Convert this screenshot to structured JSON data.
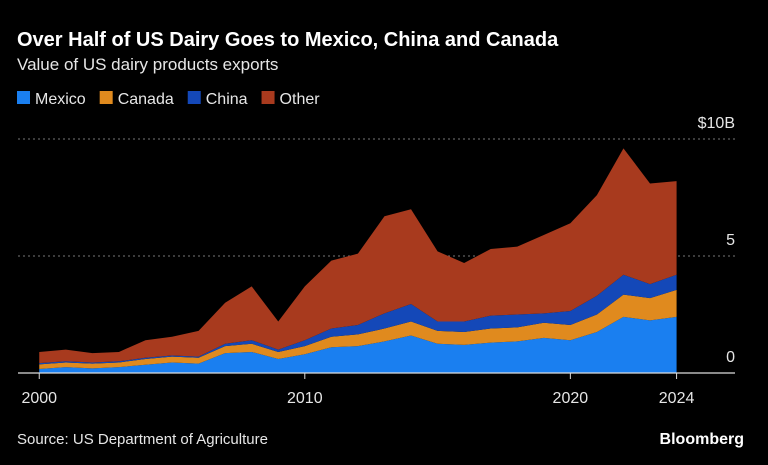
{
  "chart_data": {
    "type": "stacked_area",
    "title": "Over Half of US Dairy Goes to Mexico, China and Canada",
    "subtitle": "Value of US dairy products exports",
    "source": "Source: US Department of Agriculture",
    "brand": "Bloomberg",
    "x": [
      2000,
      2001,
      2002,
      2003,
      2004,
      2005,
      2006,
      2007,
      2008,
      2009,
      2010,
      2011,
      2012,
      2013,
      2014,
      2015,
      2016,
      2017,
      2018,
      2019,
      2020,
      2021,
      2022,
      2023,
      2024
    ],
    "xlim": [
      1999.2,
      2026.2
    ],
    "xticks": [
      2000,
      2010,
      2020,
      2024
    ],
    "ylim": [
      0,
      10
    ],
    "yticks": [
      0,
      5,
      {
        "value": 10,
        "label": "$10B"
      }
    ],
    "grid": true,
    "series": [
      {
        "name": "Mexico",
        "color": "#1a7ff0",
        "values": [
          0.17,
          0.25,
          0.2,
          0.25,
          0.35,
          0.45,
          0.4,
          0.85,
          0.9,
          0.6,
          0.8,
          1.1,
          1.15,
          1.35,
          1.6,
          1.25,
          1.2,
          1.3,
          1.35,
          1.5,
          1.4,
          1.75,
          2.4,
          2.25,
          2.4
        ]
      },
      {
        "name": "Canada",
        "color": "#e08a1e",
        "values": [
          0.2,
          0.2,
          0.2,
          0.2,
          0.25,
          0.25,
          0.25,
          0.3,
          0.35,
          0.3,
          0.35,
          0.45,
          0.5,
          0.55,
          0.6,
          0.55,
          0.55,
          0.6,
          0.6,
          0.65,
          0.65,
          0.75,
          0.95,
          0.95,
          1.15
        ]
      },
      {
        "name": "China",
        "color": "#1448b8",
        "values": [
          0.05,
          0.05,
          0.05,
          0.05,
          0.05,
          0.05,
          0.05,
          0.1,
          0.15,
          0.1,
          0.25,
          0.35,
          0.4,
          0.65,
          0.75,
          0.4,
          0.45,
          0.55,
          0.55,
          0.4,
          0.6,
          0.8,
          0.85,
          0.6,
          0.65
        ]
      },
      {
        "name": "Other",
        "color": "#a83a1e",
        "values": [
          0.48,
          0.5,
          0.4,
          0.4,
          0.75,
          0.8,
          1.1,
          1.75,
          2.3,
          1.2,
          2.3,
          2.9,
          3.05,
          4.15,
          4.05,
          3.0,
          2.5,
          2.85,
          2.9,
          3.35,
          3.75,
          4.3,
          5.4,
          4.3,
          4.0
        ]
      }
    ]
  }
}
